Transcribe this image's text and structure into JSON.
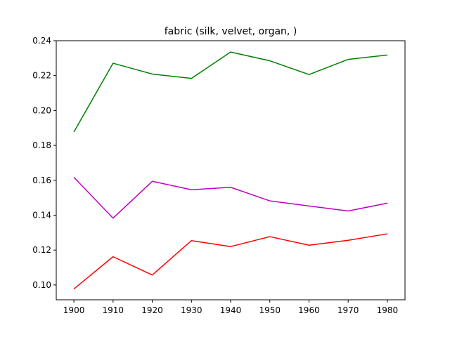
{
  "chart_data": {
    "type": "line",
    "title": "fabric (silk, velvet, organ, )",
    "xlabel": "",
    "ylabel": "",
    "x": [
      1900,
      1910,
      1920,
      1930,
      1940,
      1950,
      1960,
      1970,
      1980
    ],
    "xlim": [
      1895.5,
      1984.5
    ],
    "ylim": [
      0.0915,
      0.24
    ],
    "xticks": [
      1900,
      1910,
      1920,
      1930,
      1940,
      1950,
      1960,
      1970,
      1980
    ],
    "yticks": [
      0.1,
      0.12,
      0.14,
      0.16,
      0.18,
      0.2,
      0.22,
      0.24
    ],
    "ytick_labels": [
      "0.10",
      "0.12",
      "0.14",
      "0.16",
      "0.18",
      "0.20",
      "0.22",
      "0.24"
    ],
    "grid": false,
    "legend": "none",
    "series": [
      {
        "color": "#008000",
        "values": [
          0.1877,
          0.2271,
          0.2209,
          0.2184,
          0.2335,
          0.2285,
          0.2206,
          0.2293,
          0.2318
        ]
      },
      {
        "color": "#bf00bf",
        "values": [
          0.1617,
          0.1383,
          0.1594,
          0.1546,
          0.156,
          0.1482,
          0.1453,
          0.1424,
          0.1469
        ]
      },
      {
        "color": "#ff0000",
        "values": [
          0.0977,
          0.1162,
          0.1057,
          0.1254,
          0.122,
          0.1277,
          0.1228,
          0.1256,
          0.1293
        ]
      }
    ]
  }
}
